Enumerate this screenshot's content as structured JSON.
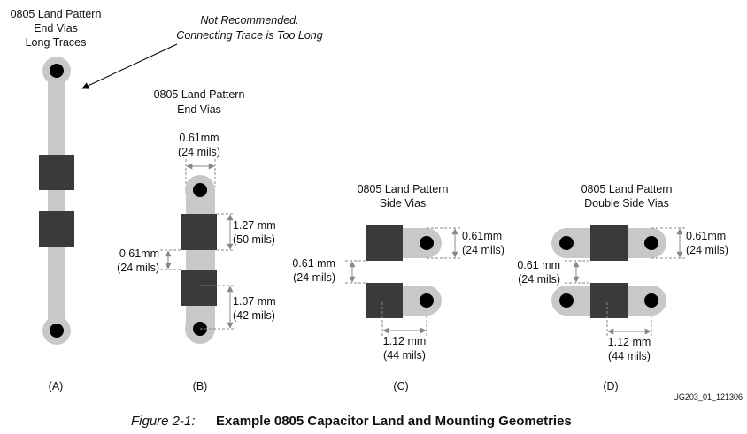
{
  "diagram_a": {
    "title_lines": [
      "0805 Land Pattern",
      "End Vias",
      "Long Traces"
    ],
    "note_lines": [
      "Not Recommended.",
      "Connecting Trace is Too Long"
    ],
    "label": "(A)"
  },
  "diagram_b": {
    "title_lines": [
      "0805 Land Pattern",
      "End Vias"
    ],
    "dim_width": [
      "0.61mm",
      "(24 mils)"
    ],
    "dim_pad_length": [
      "1.27 mm",
      "(50 mils)"
    ],
    "dim_gap": [
      "0.61mm",
      "(24 mils)"
    ],
    "dim_via_offset": [
      "1.07 mm",
      "(42 mils)"
    ],
    "label": "(B)"
  },
  "diagram_c": {
    "title_lines": [
      "0805 Land Pattern",
      "Side Vias"
    ],
    "dim_width": [
      "0.61mm",
      "(24 mils)"
    ],
    "dim_gap": [
      "0.61 mm",
      "(24 mils)"
    ],
    "dim_via_offset": [
      "1.12 mm",
      "(44 mils)"
    ],
    "label": "(C)"
  },
  "diagram_d": {
    "title_lines": [
      "0805 Land Pattern",
      "Double Side Vias"
    ],
    "dim_width": [
      "0.61mm",
      "(24 mils)"
    ],
    "dim_gap": [
      "0.61 mm",
      "(24 mils)"
    ],
    "dim_via_offset": [
      "1.12 mm",
      "(44 mils)"
    ],
    "label": "(D)"
  },
  "figure_id": "UG203_01_121306",
  "caption": {
    "prefix": "Figure 2-1:",
    "title": "Example 0805 Capacitor Land and Mounting Geometries"
  },
  "colors": {
    "trace": "#c8c8c8",
    "pad": "#3a3a3a",
    "via": "#000000",
    "dimension": "#888888"
  }
}
